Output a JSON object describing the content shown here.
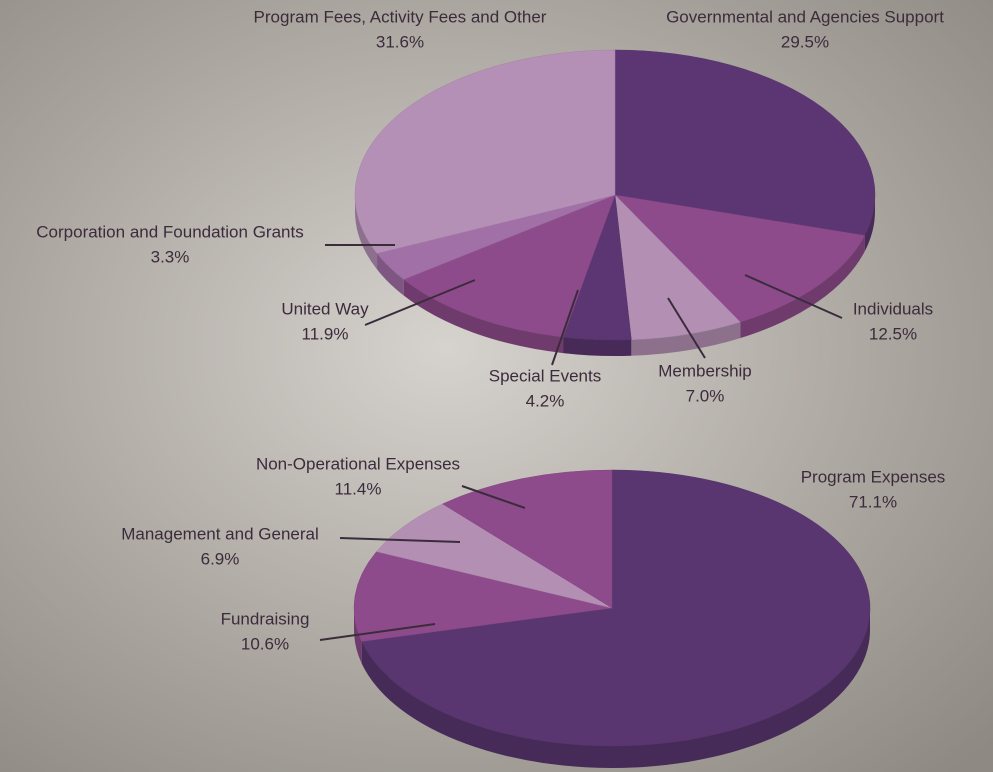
{
  "chart_data": [
    {
      "type": "pie",
      "categories": [
        "Governmental and Agencies Support",
        "Individuals",
        "Membership",
        "Special Events",
        "United Way",
        "Corporation and Foundation Grants",
        "Program Fees, Activity Fees and Other"
      ],
      "values": [
        29.5,
        12.5,
        7.0,
        4.2,
        11.9,
        3.3,
        31.6
      ],
      "value_labels": [
        "29.5%",
        "12.5%",
        "7.0%",
        "4.2%",
        "11.9%",
        "3.3%",
        "31.6%"
      ],
      "colors": [
        "#5c3672",
        "#8e4b8c",
        "#b38fb4",
        "#5c3672",
        "#8e4b8c",
        "#a070a6",
        "#b48fb6"
      ]
    },
    {
      "type": "pie",
      "categories": [
        "Program Expenses",
        "Fundraising",
        "Management and General",
        "Non-Operational Expenses"
      ],
      "values": [
        71.1,
        10.6,
        6.9,
        11.4
      ],
      "value_labels": [
        "71.1%",
        "10.6%",
        "6.9%",
        "11.4%"
      ],
      "colors": [
        "#5a3670",
        "#8e4b8c",
        "#b38fb4",
        "#8e4b8c"
      ]
    }
  ]
}
